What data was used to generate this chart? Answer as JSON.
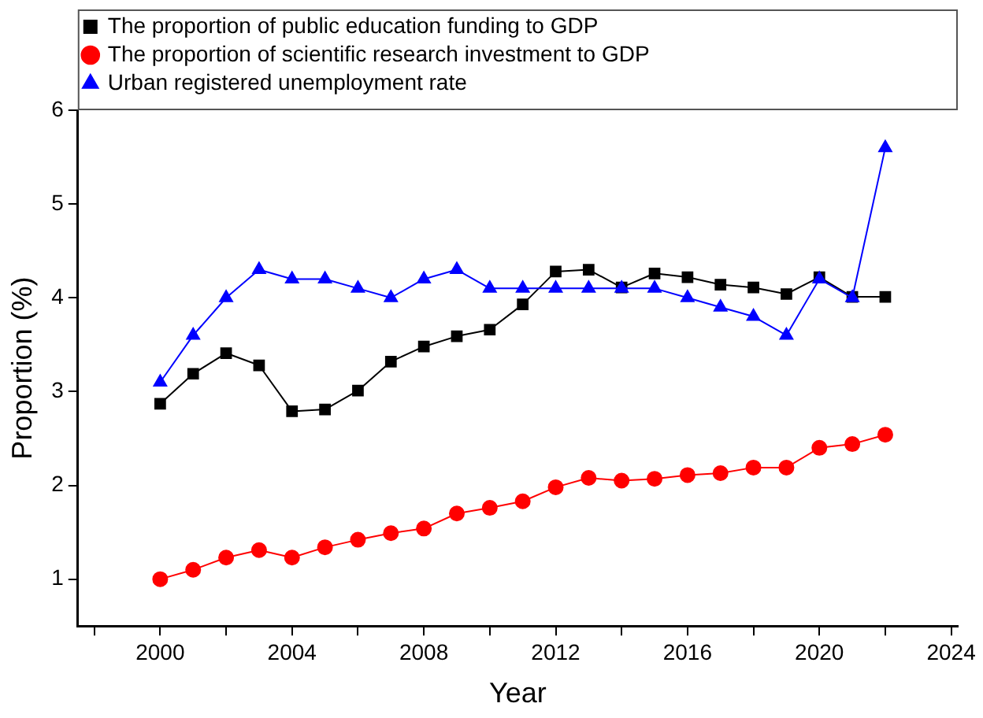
{
  "chart_data": {
    "type": "line",
    "xlabel": "Year",
    "ylabel": "Proportion (%)",
    "x": [
      2000,
      2001,
      2002,
      2003,
      2004,
      2005,
      2006,
      2007,
      2008,
      2009,
      2010,
      2011,
      2012,
      2013,
      2014,
      2015,
      2016,
      2017,
      2018,
      2019,
      2020,
      2021,
      2022
    ],
    "series": [
      {
        "name": "The proportion of public education funding to GDP",
        "color": "#000000",
        "marker": "square",
        "values": [
          2.87,
          3.19,
          3.41,
          3.28,
          2.79,
          2.81,
          3.01,
          3.32,
          3.48,
          3.59,
          3.66,
          3.93,
          4.28,
          4.3,
          4.11,
          4.26,
          4.22,
          4.14,
          4.11,
          4.04,
          4.22,
          4.01,
          4.01
        ]
      },
      {
        "name": "The proportion of scientific research investment to GDP",
        "color": "#ff0000",
        "marker": "circle",
        "values": [
          1.0,
          1.1,
          1.23,
          1.31,
          1.23,
          1.34,
          1.42,
          1.49,
          1.54,
          1.7,
          1.76,
          1.83,
          1.98,
          2.08,
          2.05,
          2.07,
          2.11,
          2.13,
          2.19,
          2.19,
          2.4,
          2.44,
          2.54
        ]
      },
      {
        "name": "Urban registered unemployment rate",
        "color": "#0000ff",
        "marker": "triangle",
        "values": [
          3.1,
          3.6,
          4.0,
          4.3,
          4.2,
          4.2,
          4.1,
          4.0,
          4.2,
          4.3,
          4.1,
          4.1,
          4.1,
          4.1,
          4.1,
          4.1,
          4.0,
          3.9,
          3.8,
          3.6,
          4.2,
          4.0,
          5.6
        ]
      }
    ],
    "xlim": [
      1997.5,
      2024.2
    ],
    "xticks": [
      {
        "value": 1998,
        "label": null
      },
      2000,
      {
        "value": 2002,
        "label": null
      },
      2004,
      {
        "value": 2006,
        "label": null
      },
      2008,
      {
        "value": 2010,
        "label": null
      },
      2012,
      {
        "value": 2014,
        "label": null
      },
      2016,
      {
        "value": 2018,
        "label": null
      },
      2020,
      {
        "value": 2022,
        "label": null
      },
      2024
    ],
    "ylim": [
      0.5,
      6
    ],
    "yticks": [
      1,
      2,
      3,
      4,
      5,
      6
    ],
    "grid": false,
    "legend": "top left"
  }
}
